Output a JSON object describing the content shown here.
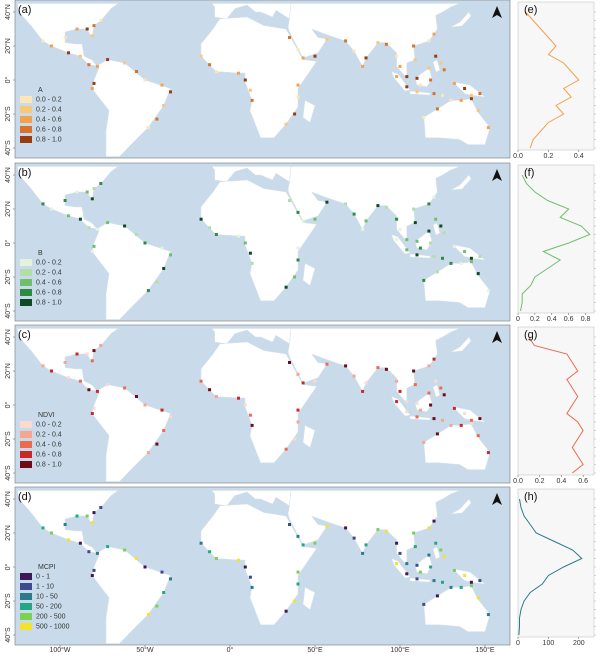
{
  "lat_axis": {
    "labels": [
      "40°N",
      "20°N",
      "0°",
      "20°S",
      "40°S"
    ],
    "values": [
      40,
      20,
      0,
      -20,
      -40
    ]
  },
  "lon_axis": {
    "labels": [
      "100°W",
      "50°W",
      "0°",
      "50°E",
      "100°E",
      "150°E"
    ],
    "values": [
      -100,
      -50,
      0,
      50,
      100,
      150
    ]
  },
  "panels": [
    {
      "label": "(a)",
      "legend_title": "A",
      "classes": [
        "0.0 - 0.2",
        "0.2 - 0.4",
        "0.4 - 0.6",
        "0.6 - 0.8",
        "0.8 - 1.0"
      ],
      "colors": [
        "#fde7b8",
        "#f9c77a",
        "#f5a04a",
        "#d9722a",
        "#9a3c12"
      ],
      "profile": {
        "label": "(e)",
        "color": "#f5a04a",
        "xlim": [
          0,
          0.5
        ],
        "xticks": [
          {
            "value": 0,
            "label": "0.0"
          },
          0.2,
          0.4
        ],
        "lat": [
          40,
          35,
          30,
          25,
          20,
          15,
          10,
          5,
          0,
          -5,
          -10,
          -15,
          -20,
          -25,
          -30,
          -35,
          -40
        ],
        "values": [
          0.05,
          0.1,
          0.15,
          0.2,
          0.25,
          0.2,
          0.3,
          0.35,
          0.4,
          0.3,
          0.35,
          0.25,
          0.3,
          0.2,
          0.15,
          0.1,
          0.08
        ]
      }
    },
    {
      "label": "(b)",
      "legend_title": "B",
      "classes": [
        "0.0 - 0.2",
        "0.2 - 0.4",
        "0.4 - 0.6",
        "0.6 - 0.8",
        "0.8 - 1.0"
      ],
      "colors": [
        "#e3f3dc",
        "#b3dfa6",
        "#6fbf6c",
        "#2f8a46",
        "#0e4b24"
      ],
      "profile": {
        "label": "(f)",
        "color": "#6fbf6c",
        "xlim": [
          0,
          0.9
        ],
        "xticks": [
          0,
          0.2,
          0.4,
          0.6,
          0.8
        ],
        "lat": [
          40,
          35,
          30,
          25,
          20,
          15,
          10,
          5,
          0,
          -5,
          -10,
          -15,
          -20,
          -25,
          -30,
          -35,
          -40
        ],
        "values": [
          0.05,
          0.1,
          0.2,
          0.35,
          0.6,
          0.5,
          0.75,
          0.85,
          0.6,
          0.3,
          0.5,
          0.35,
          0.2,
          0.15,
          0.05,
          0.05,
          0.03
        ]
      }
    },
    {
      "label": "(c)",
      "legend_title": "NDVI",
      "classes": [
        "0.0 - 0.2",
        "0.2 - 0.4",
        "0.4 - 0.6",
        "0.6 - 0.8",
        "0.8 - 1.0"
      ],
      "colors": [
        "#fbdad0",
        "#f5a68e",
        "#ec6a4f",
        "#c9282a",
        "#6e0c16"
      ],
      "profile": {
        "label": "(g)",
        "color": "#ec6a4f",
        "xlim": [
          0,
          0.7
        ],
        "xticks": [
          {
            "value": 0,
            "label": "0.0"
          },
          0.2,
          0.4,
          0.6
        ],
        "lat": [
          40,
          35,
          30,
          25,
          20,
          15,
          10,
          5,
          0,
          -5,
          -10,
          -15,
          -20,
          -25,
          -30,
          -35,
          -40
        ],
        "values": [
          0.1,
          0.15,
          0.45,
          0.5,
          0.55,
          0.45,
          0.5,
          0.55,
          0.5,
          0.45,
          0.55,
          0.6,
          0.55,
          0.5,
          0.55,
          0.6,
          0.5
        ]
      }
    },
    {
      "label": "(d)",
      "legend_title": "MCPI",
      "classes": [
        "0 - 1",
        "1 - 10",
        "10 - 50",
        "50 - 200",
        "200 - 500",
        "500 - 1000"
      ],
      "colors": [
        "#3d1856",
        "#3b4b8e",
        "#2a7b8c",
        "#22a884",
        "#7bd150",
        "#f5e22a"
      ],
      "profile": {
        "label": "(h)",
        "color": "#2a7b8c",
        "xlim": [
          0,
          250
        ],
        "xticks": [
          0,
          100,
          200
        ],
        "lat": [
          40,
          35,
          30,
          25,
          20,
          15,
          10,
          5,
          0,
          -5,
          -10,
          -15,
          -20,
          -25,
          -30,
          -35,
          -40
        ],
        "values": [
          5,
          10,
          20,
          40,
          60,
          120,
          180,
          210,
          150,
          100,
          80,
          40,
          20,
          10,
          5,
          5,
          3
        ]
      }
    }
  ]
}
